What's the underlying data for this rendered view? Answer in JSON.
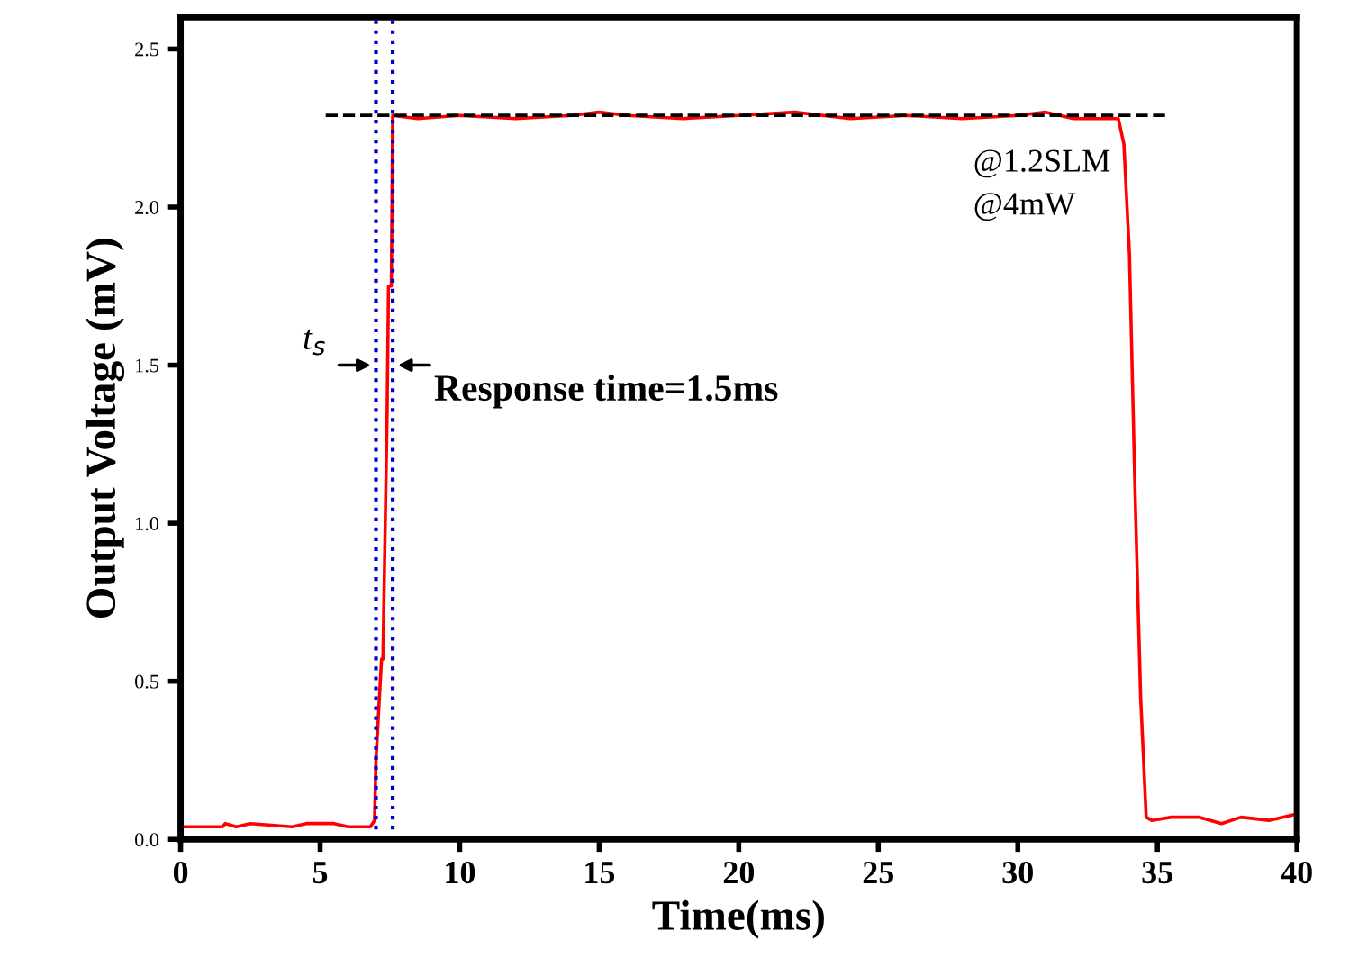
{
  "chart_data": {
    "type": "line",
    "xlabel": "Time(ms)",
    "ylabel": "Output Voltage (mV)",
    "xlim": [
      0,
      40
    ],
    "ylim": [
      0,
      2.6
    ],
    "xticks": [
      0,
      5,
      10,
      15,
      20,
      25,
      30,
      35,
      40
    ],
    "yticks": [
      {
        "value": 0,
        "label": "0.0"
      },
      {
        "value": 0.5,
        "label": "0.5"
      },
      {
        "value": 1,
        "label": "1.0"
      },
      {
        "value": 1.5,
        "label": "1.5"
      },
      {
        "value": 2,
        "label": "2.0"
      },
      {
        "value": 2.5,
        "label": "2.5"
      }
    ],
    "grid": false,
    "legend": false,
    "series": [
      {
        "color": "#ff0000",
        "line_style": "solid",
        "x": [
          0,
          1.5,
          1.6,
          2,
          2.5,
          4,
          4.5,
          5.5,
          6,
          6.8,
          6.95,
          7.0,
          7.2,
          7.25,
          7.4,
          7.45,
          7.55,
          7.6,
          8.5,
          10,
          12,
          14,
          15,
          16,
          18,
          20,
          22,
          24,
          26,
          28,
          30,
          31,
          32,
          33,
          33.6,
          33.8,
          34.0,
          34.2,
          34.4,
          34.6,
          34.8,
          35.5,
          36.5,
          37.3,
          38,
          39,
          40
        ],
        "values": [
          0.04,
          0.04,
          0.05,
          0.04,
          0.05,
          0.04,
          0.05,
          0.05,
          0.04,
          0.04,
          0.06,
          0.25,
          0.57,
          0.57,
          1.35,
          1.75,
          1.75,
          2.29,
          2.28,
          2.29,
          2.28,
          2.29,
          2.3,
          2.29,
          2.28,
          2.29,
          2.3,
          2.28,
          2.29,
          2.28,
          2.29,
          2.3,
          2.28,
          2.28,
          2.28,
          2.2,
          1.85,
          1.1,
          0.45,
          0.07,
          0.06,
          0.07,
          0.07,
          0.05,
          0.07,
          0.06,
          0.08
        ]
      },
      {
        "color": "#000000",
        "line_style": "dashed",
        "x": [
          5.2,
          35.3
        ],
        "values": [
          2.29,
          2.29
        ]
      }
    ],
    "ref_lines": [
      {
        "axis": "x",
        "value": 7.0,
        "color": "#0000cc",
        "line_style": "dotted"
      },
      {
        "axis": "x",
        "value": 7.6,
        "color": "#0000cc",
        "line_style": "dotted"
      }
    ],
    "annotations": [
      {
        "text": "t$_{s}$",
        "x": 7.3,
        "y": 1.5
      },
      "Response time=1.5ms",
      "@1.2SLM\n@4mW"
    ]
  }
}
